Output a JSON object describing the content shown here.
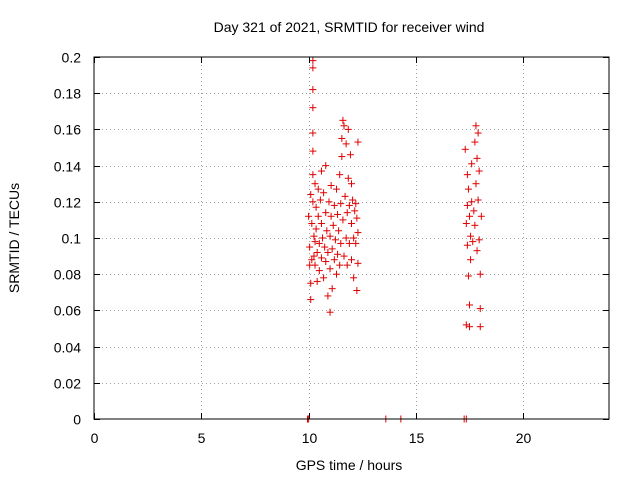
{
  "chart_data": {
    "type": "scatter",
    "title": "Day 321 of 2021, SRMTID for receiver wind",
    "xlabel": "GPS time / hours",
    "ylabel": "SRMTID / TECUs",
    "xlim": [
      0,
      24
    ],
    "ylim": [
      0,
      0.2
    ],
    "xticks": [
      0,
      5,
      10,
      15,
      20
    ],
    "yticks": [
      0,
      0.02,
      0.04,
      0.06,
      0.08,
      0.1,
      0.12,
      0.14,
      0.16,
      0.18,
      0.2
    ],
    "grid": true,
    "marker": "+",
    "color": "#e00000",
    "series": [
      {
        "points": [
          [
            9.95,
            0.0
          ],
          [
            10.0,
            0.0
          ],
          [
            13.6,
            0.0
          ],
          [
            14.3,
            0.0
          ],
          [
            17.25,
            0.0
          ],
          [
            17.35,
            0.0
          ],
          [
            10.0,
            0.112
          ],
          [
            10.05,
            0.095
          ],
          [
            10.05,
            0.085
          ],
          [
            10.1,
            0.124
          ],
          [
            10.1,
            0.075
          ],
          [
            10.1,
            0.066
          ],
          [
            10.15,
            0.108
          ],
          [
            10.15,
            0.088
          ],
          [
            10.2,
            0.198
          ],
          [
            10.2,
            0.194
          ],
          [
            10.2,
            0.182
          ],
          [
            10.2,
            0.172
          ],
          [
            10.2,
            0.158
          ],
          [
            10.2,
            0.148
          ],
          [
            10.2,
            0.135
          ],
          [
            10.2,
            0.12
          ],
          [
            10.25,
            0.101
          ],
          [
            10.25,
            0.09
          ],
          [
            10.3,
            0.13
          ],
          [
            10.3,
            0.098
          ],
          [
            10.3,
            0.085
          ],
          [
            10.35,
            0.117
          ],
          [
            10.35,
            0.105
          ],
          [
            10.4,
            0.076
          ],
          [
            10.4,
            0.092
          ],
          [
            10.45,
            0.127
          ],
          [
            10.45,
            0.112
          ],
          [
            10.5,
            0.097
          ],
          [
            10.5,
            0.082
          ],
          [
            10.55,
            0.121
          ],
          [
            10.6,
            0.137
          ],
          [
            10.6,
            0.108
          ],
          [
            10.6,
            0.089
          ],
          [
            10.65,
            0.1
          ],
          [
            10.7,
            0.125
          ],
          [
            10.7,
            0.078
          ],
          [
            10.75,
            0.095
          ],
          [
            10.8,
            0.14
          ],
          [
            10.8,
            0.114
          ],
          [
            10.8,
            0.087
          ],
          [
            10.85,
            0.104
          ],
          [
            10.9,
            0.068
          ],
          [
            10.9,
            0.092
          ],
          [
            10.95,
            0.12
          ],
          [
            11.0,
            0.101
          ],
          [
            11.0,
            0.083
          ],
          [
            11.0,
            0.059
          ],
          [
            11.05,
            0.129
          ],
          [
            11.05,
            0.112
          ],
          [
            11.1,
            0.094
          ],
          [
            11.1,
            0.072
          ],
          [
            11.15,
            0.107
          ],
          [
            11.2,
            0.118
          ],
          [
            11.2,
            0.088
          ],
          [
            11.25,
            0.099
          ],
          [
            11.3,
            0.127
          ],
          [
            11.3,
            0.08
          ],
          [
            11.35,
            0.113
          ],
          [
            11.35,
            0.091
          ],
          [
            11.4,
            0.104
          ],
          [
            11.45,
            0.085
          ],
          [
            11.45,
            0.135
          ],
          [
            11.5,
            0.119
          ],
          [
            11.5,
            0.097
          ],
          [
            11.55,
            0.155
          ],
          [
            11.55,
            0.145
          ],
          [
            11.6,
            0.165
          ],
          [
            11.6,
            0.11
          ],
          [
            11.65,
            0.162
          ],
          [
            11.65,
            0.09
          ],
          [
            11.7,
            0.123
          ],
          [
            11.75,
            0.152
          ],
          [
            11.75,
            0.1
          ],
          [
            11.8,
            0.114
          ],
          [
            11.8,
            0.085
          ],
          [
            11.85,
            0.16
          ],
          [
            11.85,
            0.133
          ],
          [
            11.9,
            0.118
          ],
          [
            11.9,
            0.097
          ],
          [
            11.95,
            0.146
          ],
          [
            12.0,
            0.13
          ],
          [
            12.0,
            0.108
          ],
          [
            12.0,
            0.088
          ],
          [
            12.05,
            0.121
          ],
          [
            12.1,
            0.1
          ],
          [
            12.1,
            0.078
          ],
          [
            12.15,
            0.115
          ],
          [
            12.2,
            0.119
          ],
          [
            12.2,
            0.097
          ],
          [
            12.25,
            0.111
          ],
          [
            12.25,
            0.071
          ],
          [
            12.3,
            0.153
          ],
          [
            12.3,
            0.103
          ],
          [
            12.3,
            0.086
          ],
          [
            17.3,
            0.149
          ],
          [
            17.35,
            0.108
          ],
          [
            17.35,
            0.052
          ],
          [
            17.4,
            0.135
          ],
          [
            17.4,
            0.118
          ],
          [
            17.4,
            0.096
          ],
          [
            17.45,
            0.127
          ],
          [
            17.45,
            0.079
          ],
          [
            17.5,
            0.112
          ],
          [
            17.5,
            0.063
          ],
          [
            17.5,
            0.051
          ],
          [
            17.55,
            0.101
          ],
          [
            17.55,
            0.088
          ],
          [
            17.6,
            0.141
          ],
          [
            17.6,
            0.12
          ],
          [
            17.65,
            0.098
          ],
          [
            17.7,
            0.115
          ],
          [
            17.75,
            0.153
          ],
          [
            17.75,
            0.107
          ],
          [
            17.8,
            0.162
          ],
          [
            17.8,
            0.13
          ],
          [
            17.85,
            0.144
          ],
          [
            17.85,
            0.093
          ],
          [
            17.9,
            0.158
          ],
          [
            17.9,
            0.121
          ],
          [
            17.95,
            0.137
          ],
          [
            17.95,
            0.099
          ],
          [
            18.0,
            0.08
          ],
          [
            18.0,
            0.061
          ],
          [
            18.0,
            0.051
          ],
          [
            18.05,
            0.112
          ]
        ]
      }
    ]
  }
}
